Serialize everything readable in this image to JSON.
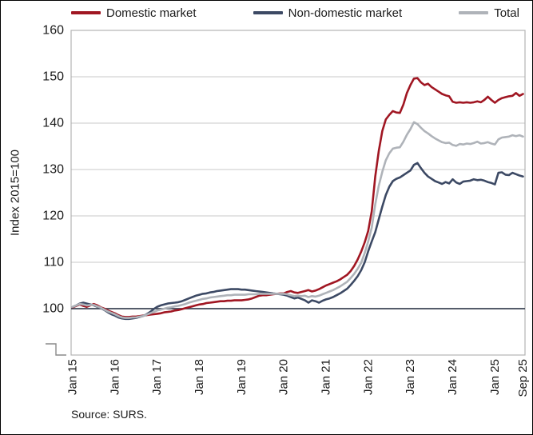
{
  "chart_data": {
    "type": "line",
    "title": "",
    "ylabel": "Index 2015=100",
    "source_note": "Source: SURS.",
    "legend_position": "top",
    "grid": "horizontal",
    "axis_break": true,
    "baseline": 100,
    "ylim": [
      90,
      160
    ],
    "yticks": [
      100,
      110,
      120,
      130,
      140,
      150,
      160
    ],
    "x_unit": "month",
    "x_start": "Jan 2015",
    "x_end": "Sep 2025",
    "x_ticks": [
      {
        "label": "Jan 15",
        "month": 0
      },
      {
        "label": "Jan 16",
        "month": 12
      },
      {
        "label": "Jan 17",
        "month": 24
      },
      {
        "label": "Jan 18",
        "month": 36
      },
      {
        "label": "Jan 19",
        "month": 48
      },
      {
        "label": "Jan 20",
        "month": 60
      },
      {
        "label": "Jan 21",
        "month": 72
      },
      {
        "label": "Jan 22",
        "month": 84
      },
      {
        "label": "Jan 23",
        "month": 96
      },
      {
        "label": "Jan 24",
        "month": 108
      },
      {
        "label": "Jan 25",
        "month": 120
      },
      {
        "label": "Sep 25",
        "month": 128
      }
    ],
    "colors": {
      "grid": "#C9C9C9",
      "plot_border": "#B3B3B3",
      "baseline": "#3D4455",
      "axis_break": "#8A8A8A",
      "text": "#1A1A1A"
    },
    "series": [
      {
        "id": "domestic",
        "name": "Domestic market",
        "color": "#A01622",
        "values": [
          100.3,
          100.6,
          100.9,
          100.6,
          100.4,
          100.7,
          101.0,
          100.7,
          100.3,
          100.0,
          99.6,
          99.3,
          99.0,
          98.6,
          98.3,
          98.2,
          98.2,
          98.3,
          98.3,
          98.4,
          98.5,
          98.6,
          98.7,
          98.8,
          98.9,
          99.0,
          99.2,
          99.3,
          99.4,
          99.6,
          99.7,
          99.9,
          100.1,
          100.3,
          100.5,
          100.7,
          100.9,
          101.0,
          101.2,
          101.3,
          101.4,
          101.5,
          101.6,
          101.6,
          101.7,
          101.7,
          101.8,
          101.8,
          101.8,
          101.9,
          102.0,
          102.2,
          102.5,
          102.8,
          102.9,
          102.9,
          103.0,
          103.1,
          103.2,
          103.3,
          103.3,
          103.6,
          103.8,
          103.5,
          103.4,
          103.6,
          103.8,
          104.0,
          103.7,
          103.9,
          104.2,
          104.6,
          105.0,
          105.3,
          105.6,
          105.9,
          106.3,
          106.8,
          107.3,
          108.1,
          109.2,
          110.6,
          112.3,
          114.3,
          116.8,
          121.0,
          128.5,
          134.0,
          138.3,
          140.8,
          141.8,
          142.6,
          142.3,
          142.2,
          144.0,
          146.5,
          148.2,
          149.6,
          149.7,
          148.8,
          148.2,
          148.5,
          147.8,
          147.3,
          146.8,
          146.3,
          146.0,
          145.8,
          144.6,
          144.4,
          144.5,
          144.4,
          144.5,
          144.4,
          144.5,
          144.7,
          144.5,
          145.0,
          145.7,
          145.0,
          144.4,
          145.0,
          145.4,
          145.6,
          145.8,
          145.9,
          146.5,
          145.9,
          146.3
        ]
      },
      {
        "id": "non-domestic",
        "name": "Non-domestic market",
        "color": "#3C4964",
        "values": [
          100.4,
          100.7,
          101.1,
          101.3,
          101.1,
          100.9,
          100.7,
          100.4,
          100.1,
          99.7,
          99.2,
          98.8,
          98.5,
          98.1,
          97.9,
          97.8,
          97.8,
          97.9,
          98.0,
          98.2,
          98.4,
          98.8,
          99.3,
          99.9,
          100.4,
          100.7,
          100.9,
          101.1,
          101.2,
          101.3,
          101.4,
          101.6,
          101.9,
          102.2,
          102.5,
          102.8,
          103.0,
          103.2,
          103.3,
          103.5,
          103.6,
          103.8,
          103.9,
          104.0,
          104.1,
          104.2,
          104.2,
          104.2,
          104.1,
          104.1,
          104.0,
          103.9,
          103.8,
          103.7,
          103.6,
          103.5,
          103.4,
          103.3,
          103.2,
          103.1,
          103.0,
          102.8,
          102.5,
          102.2,
          102.4,
          102.1,
          101.8,
          101.3,
          101.8,
          101.6,
          101.3,
          101.7,
          102.0,
          102.2,
          102.5,
          102.9,
          103.3,
          103.8,
          104.3,
          105.1,
          106.0,
          107.0,
          108.3,
          110.0,
          112.4,
          114.5,
          116.5,
          119.3,
          122.0,
          124.5,
          126.3,
          127.5,
          128.0,
          128.3,
          128.8,
          129.3,
          129.8,
          131.0,
          131.4,
          130.3,
          129.3,
          128.5,
          128.0,
          127.5,
          127.2,
          126.9,
          127.3,
          127.0,
          127.9,
          127.2,
          126.9,
          127.4,
          127.5,
          127.6,
          127.9,
          127.7,
          127.8,
          127.6,
          127.3,
          127.1,
          126.8,
          129.3,
          129.4,
          128.9,
          128.8,
          129.3,
          129.0,
          128.7,
          128.5
        ]
      },
      {
        "id": "total",
        "name": "Total",
        "color": "#AFB3B9",
        "values": [
          100.4,
          100.7,
          101.0,
          100.9,
          100.7,
          100.8,
          100.8,
          100.5,
          100.2,
          99.8,
          99.4,
          99.1,
          98.8,
          98.4,
          98.1,
          98.0,
          98.0,
          98.1,
          98.1,
          98.3,
          98.4,
          98.7,
          99.0,
          99.3,
          99.6,
          99.8,
          100.0,
          100.2,
          100.3,
          100.5,
          100.6,
          100.8,
          101.0,
          101.3,
          101.5,
          101.7,
          101.9,
          102.1,
          102.2,
          102.4,
          102.5,
          102.6,
          102.7,
          102.8,
          102.9,
          102.9,
          103.0,
          103.0,
          103.0,
          103.0,
          103.1,
          103.1,
          103.1,
          103.2,
          103.2,
          103.2,
          103.2,
          103.2,
          103.2,
          103.2,
          103.2,
          103.1,
          102.9,
          102.7,
          102.8,
          102.7,
          102.8,
          102.5,
          102.7,
          102.6,
          102.8,
          103.1,
          103.4,
          103.7,
          104.0,
          104.4,
          104.8,
          105.3,
          105.8,
          106.6,
          107.5,
          108.6,
          109.9,
          112.0,
          114.5,
          117.5,
          122.5,
          126.5,
          129.5,
          132.0,
          133.5,
          134.5,
          134.7,
          134.8,
          136.0,
          137.5,
          138.7,
          140.2,
          139.8,
          139.0,
          138.3,
          137.8,
          137.2,
          136.7,
          136.3,
          135.9,
          135.7,
          135.8,
          135.3,
          135.1,
          135.5,
          135.4,
          135.6,
          135.5,
          135.7,
          136.0,
          135.6,
          135.7,
          135.9,
          135.6,
          135.4,
          136.5,
          136.9,
          137.0,
          137.1,
          137.4,
          137.2,
          137.4,
          137.1
        ]
      }
    ]
  }
}
